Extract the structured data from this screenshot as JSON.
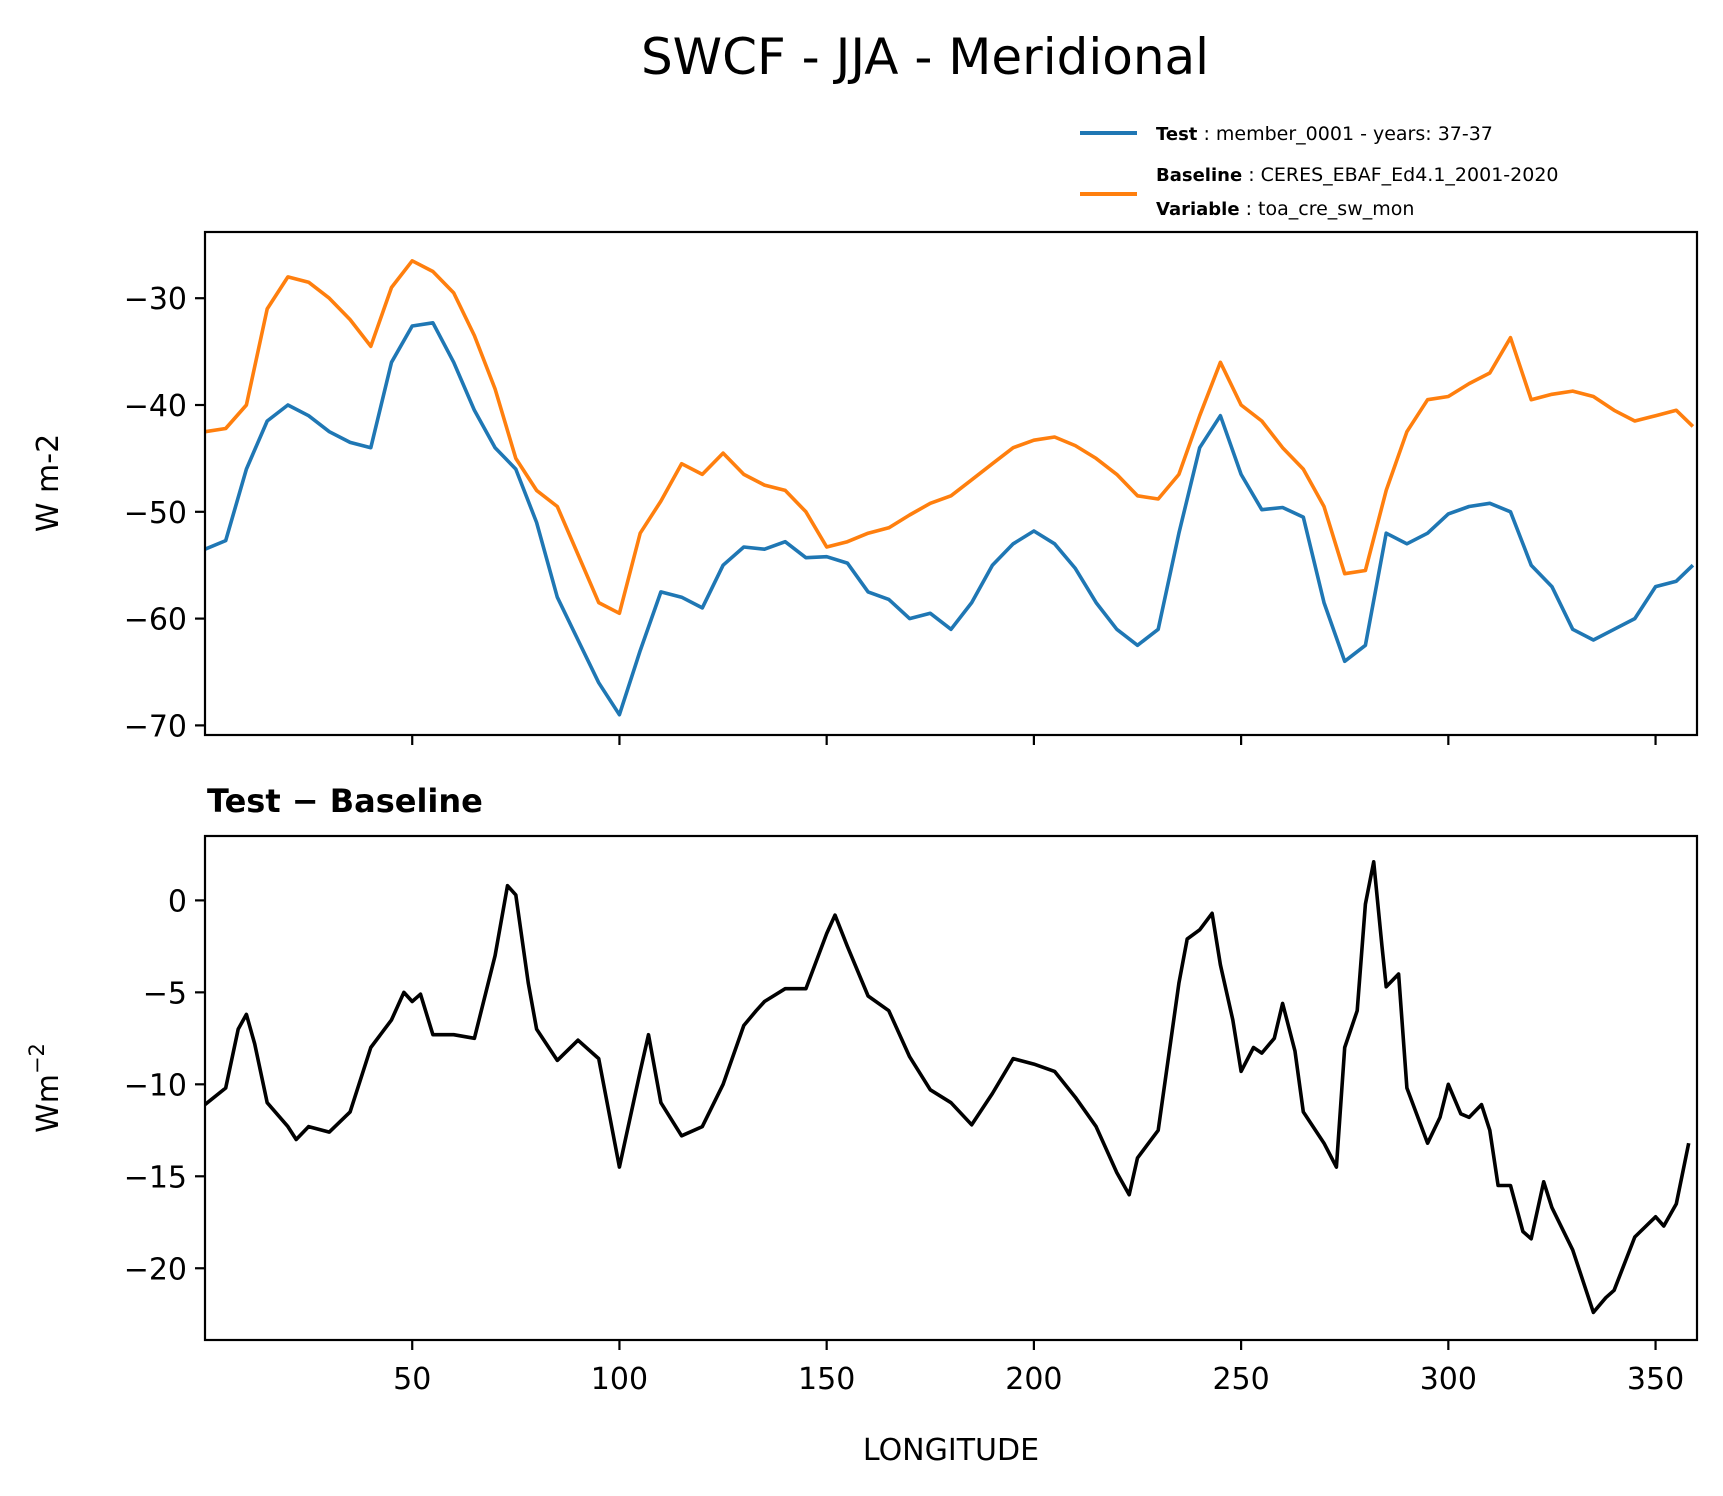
{
  "figure": {
    "title": "SWCF - JJA - Meridional"
  },
  "legend": {
    "entries": [
      {
        "key": "Test",
        "sep": " : ",
        "value": "member_0001 - years: 37-37",
        "color": "#1f77b4"
      },
      {
        "key": "Baseline",
        "sep": " : ",
        "value": "CERES_EBAF_Ed4.1_2001-2020",
        "color": "#ff7f0e"
      },
      {
        "key": "Variable",
        "sep": " : ",
        "value": "toa_cre_sw_mon",
        "color": ""
      }
    ]
  },
  "chart_data": [
    {
      "type": "line",
      "title": "",
      "xlabel": "",
      "ylabel": "W m-2",
      "xlim": [
        0,
        360
      ],
      "ylim": [
        -70.9,
        -23.8
      ],
      "yticks": [
        -30,
        -40,
        -50,
        -60,
        -70
      ],
      "ytick_labels": [
        "−30",
        "−40",
        "−50",
        "−60",
        "−70"
      ],
      "xticks": [
        50,
        100,
        150,
        200,
        250,
        300,
        350
      ],
      "xtick_labels_visible": false,
      "grid": false,
      "legend_placement": "above-top-right",
      "x": [
        0,
        5,
        10,
        15,
        20,
        25,
        30,
        35,
        40,
        45,
        50,
        55,
        60,
        65,
        70,
        75,
        80,
        85,
        90,
        95,
        100,
        105,
        110,
        115,
        120,
        125,
        130,
        135,
        140,
        145,
        150,
        155,
        160,
        165,
        170,
        175,
        180,
        185,
        190,
        195,
        200,
        205,
        210,
        215,
        220,
        225,
        230,
        235,
        240,
        245,
        250,
        255,
        260,
        265,
        270,
        275,
        280,
        285,
        290,
        295,
        300,
        305,
        310,
        315,
        320,
        325,
        330,
        335,
        340,
        345,
        350,
        355,
        359
      ],
      "series": [
        {
          "name": "Test",
          "color": "#1f77b4",
          "values": [
            -53.5,
            -52.7,
            -46,
            -41.5,
            -40,
            -41,
            -42.5,
            -43.5,
            -44,
            -36,
            -32.6,
            -32.3,
            -36,
            -40.5,
            -44,
            -46,
            -51,
            -58,
            -62,
            -66,
            -69,
            -63,
            -57.5,
            -58,
            -59,
            -55,
            -53.3,
            -53.5,
            -52.8,
            -54.3,
            -54.2,
            -54.8,
            -57.5,
            -58.2,
            -60,
            -59.5,
            -61,
            -58.5,
            -55,
            -53,
            -51.8,
            -53,
            -55.3,
            -58.5,
            -61,
            -62.5,
            -61,
            -52,
            -44,
            -41,
            -46.5,
            -49.8,
            -49.6,
            -50.5,
            -58.5,
            -64,
            -62.5,
            -52,
            -53,
            -52,
            -50.2,
            -49.5,
            -49.2,
            -50,
            -55,
            -57,
            -61,
            -62,
            -61,
            -60,
            -57,
            -56.5,
            -55
          ]
        },
        {
          "name": "Baseline",
          "color": "#ff7f0e",
          "values": [
            -42.5,
            -42.2,
            -40,
            -31,
            -28,
            -28.5,
            -30,
            -32,
            -34.5,
            -29,
            -26.5,
            -27.5,
            -29.5,
            -33.5,
            -38.5,
            -45,
            -48,
            -49.5,
            -54,
            -58.5,
            -59.5,
            -52,
            -49,
            -45.5,
            -46.5,
            -44.5,
            -46.5,
            -47.5,
            -48,
            -50,
            -53.3,
            -52.8,
            -52,
            -51.5,
            -50.3,
            -49.2,
            -48.5,
            -47,
            -45.5,
            -44,
            -43.3,
            -43,
            -43.8,
            -45,
            -46.5,
            -48.5,
            -48.8,
            -46.5,
            -41,
            -36,
            -40,
            -41.5,
            -44,
            -46,
            -49.5,
            -55.8,
            -55.5,
            -48,
            -42.5,
            -39.5,
            -39.2,
            -38,
            -37,
            -33.7,
            -39.5,
            -39,
            -38.7,
            -39.2,
            -40.5,
            -41.5,
            -41,
            -40.5,
            -42
          ]
        }
      ]
    },
    {
      "type": "line",
      "title": "Test − Baseline",
      "xlabel": "LONGITUDE",
      "ylabel": "Wm⁻²",
      "ylabel_base": "Wm",
      "ylabel_sup": "−2",
      "xlim": [
        0,
        360
      ],
      "ylim": [
        -23.9,
        3.5
      ],
      "yticks": [
        0,
        -5,
        -10,
        -15,
        -20
      ],
      "ytick_labels": [
        "0",
        "−5",
        "−10",
        "−15",
        "−20"
      ],
      "xticks": [
        50,
        100,
        150,
        200,
        250,
        300,
        350
      ],
      "xtick_labels": [
        "50",
        "100",
        "150",
        "200",
        "250",
        "300",
        "350"
      ],
      "grid": false,
      "x": [
        0,
        5,
        8,
        10,
        12,
        15,
        20,
        22,
        25,
        30,
        35,
        40,
        45,
        48,
        50,
        52,
        55,
        60,
        65,
        70,
        73,
        75,
        78,
        80,
        85,
        90,
        95,
        100,
        105,
        107,
        110,
        115,
        120,
        125,
        130,
        133,
        135,
        140,
        145,
        150,
        152,
        155,
        160,
        165,
        170,
        175,
        180,
        185,
        190,
        195,
        200,
        205,
        210,
        215,
        220,
        223,
        225,
        230,
        235,
        237,
        240,
        243,
        245,
        248,
        250,
        253,
        255,
        258,
        260,
        263,
        265,
        270,
        273,
        275,
        278,
        280,
        282,
        284,
        285,
        288,
        290,
        295,
        298,
        300,
        303,
        305,
        308,
        310,
        312,
        315,
        318,
        320,
        323,
        325,
        330,
        335,
        338,
        340,
        345,
        350,
        352,
        355,
        358
      ],
      "series": [
        {
          "name": "Test − Baseline",
          "color": "#000000",
          "values": [
            -11.1,
            -10.2,
            -7,
            -6.2,
            -7.8,
            -11,
            -12.3,
            -13,
            -12.3,
            -12.6,
            -11.5,
            -8,
            -6.5,
            -5,
            -5.5,
            -5.1,
            -7.3,
            -7.3,
            -7.5,
            -3,
            0.8,
            0.3,
            -4.5,
            -7,
            -8.7,
            -7.6,
            -8.6,
            -14.5,
            -9.3,
            -7.3,
            -11,
            -12.8,
            -12.3,
            -10,
            -6.8,
            -6,
            -5.5,
            -4.8,
            -4.8,
            -1.8,
            -0.8,
            -2.5,
            -5.2,
            -6,
            -8.5,
            -10.3,
            -11,
            -12.2,
            -10.5,
            -8.6,
            -8.9,
            -9.3,
            -10.7,
            -12.3,
            -14.8,
            -16,
            -14,
            -12.5,
            -4.5,
            -2.1,
            -1.6,
            -0.7,
            -3.5,
            -6.5,
            -9.3,
            -8,
            -8.3,
            -7.5,
            -5.6,
            -8.2,
            -11.5,
            -13.2,
            -14.5,
            -8,
            -6,
            -0.2,
            2.1,
            -2.5,
            -4.7,
            -4,
            -10.2,
            -13.2,
            -11.8,
            -10,
            -11.6,
            -11.8,
            -11.1,
            -12.5,
            -15.5,
            -15.5,
            -18,
            -18.4,
            -15.3,
            -16.7,
            -19,
            -22.4,
            -21.6,
            -21.2,
            -18.3,
            -17.2,
            -17.7,
            -16.5,
            -13.2
          ]
        }
      ]
    }
  ]
}
